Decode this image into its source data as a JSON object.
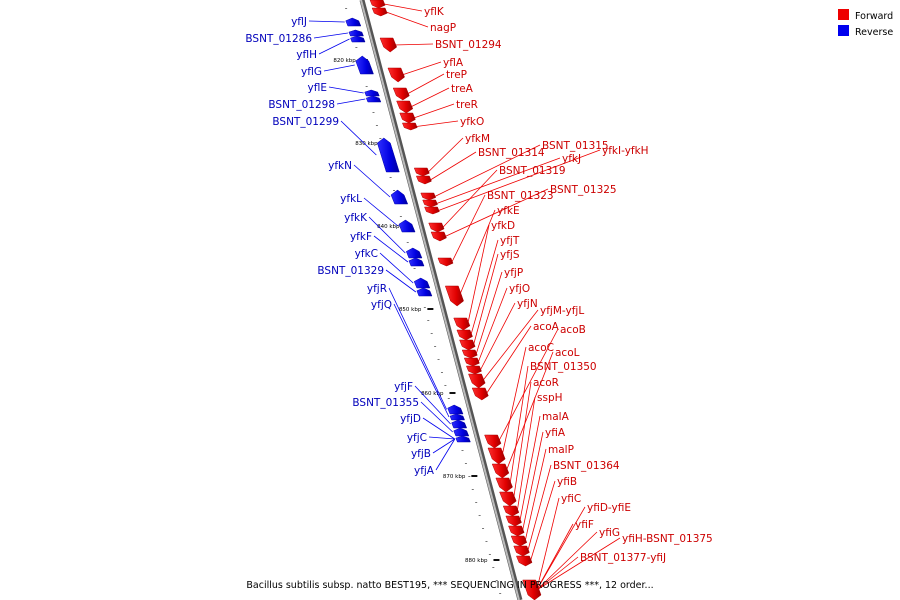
{
  "caption": "Bacillus subtilis subsp. natto BEST195, *** SEQUENCING IN PROGRESS ***, 12 order...",
  "legend": [
    {
      "label": "Forward",
      "color": "#ee0000"
    },
    {
      "label": "Reverse",
      "color": "#0000ee"
    }
  ],
  "ticks": [
    "820 kbp",
    "830 kbp",
    "840 kbp",
    "850 kbp",
    "860 kbp",
    "870 kbp",
    "880 kbp"
  ],
  "forward_labels": [
    "yflK",
    "nagP",
    "BSNT_01294",
    "yflA",
    "treP",
    "treA",
    "treR",
    "yfkO",
    "yfkM",
    "BSNT_01314",
    "BSNT_01315",
    "yfkJ",
    "yfkI-yfkH",
    "BSNT_01319",
    "BSNT_01325",
    "BSNT_01323",
    "yfkE",
    "yfkD",
    "yfjT",
    "yfjS",
    "yfjP",
    "yfjO",
    "yfjN",
    "yfjM-yfjL",
    "acoA",
    "acoB",
    "acoC",
    "acoL",
    "BSNT_01350",
    "acoR",
    "sspH",
    "malA",
    "yfiA",
    "malP",
    "BSNT_01364",
    "yfiB",
    "yfiC",
    "yfiD-yfiE",
    "yfiF",
    "yfiG",
    "yfiH-BSNT_01375",
    "BSNT_01377-yfiJ"
  ],
  "reverse_labels": [
    "yflJ",
    "BSNT_01286",
    "yflH",
    "yflG",
    "yflE",
    "BSNT_01298",
    "BSNT_01299",
    "yfkN",
    "yfkL",
    "yfkK",
    "yfkF",
    "yfkC",
    "BSNT_01329",
    "yfjR",
    "yfjQ",
    "yfjF",
    "BSNT_01355",
    "yfjD",
    "yfjC",
    "yfjB",
    "yfjA"
  ],
  "colors": {
    "forward": "#ee0000",
    "reverse": "#0000ee",
    "axis": "#888888"
  }
}
